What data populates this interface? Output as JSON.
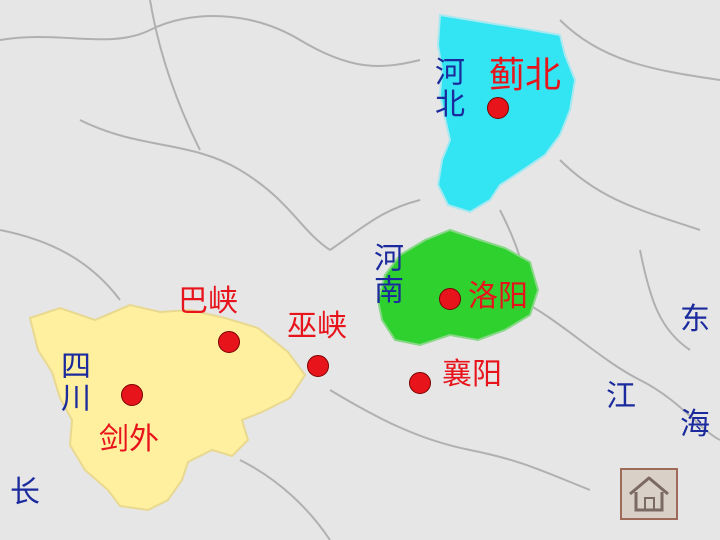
{
  "labels": {
    "hebei": "河北",
    "henan": "河南",
    "sichuan": "四川",
    "jibei": "蓟北",
    "luoyang": "洛阳",
    "baxia": "巴峡",
    "wuxia": "巫峡",
    "xiangyang": "襄阳",
    "jianwai": "剑外",
    "dong": "东",
    "jiang": "江",
    "hai": "海",
    "chang": "长"
  },
  "colors": {
    "hebei_region": "#33e5f2",
    "henan_region": "#2fd12f",
    "sichuan_region": "#fff0a0",
    "place_dot": "#e8141c",
    "place_text": "#e8141c",
    "region_text": "#1b2a9c"
  },
  "icons": {
    "home": "home-icon"
  }
}
